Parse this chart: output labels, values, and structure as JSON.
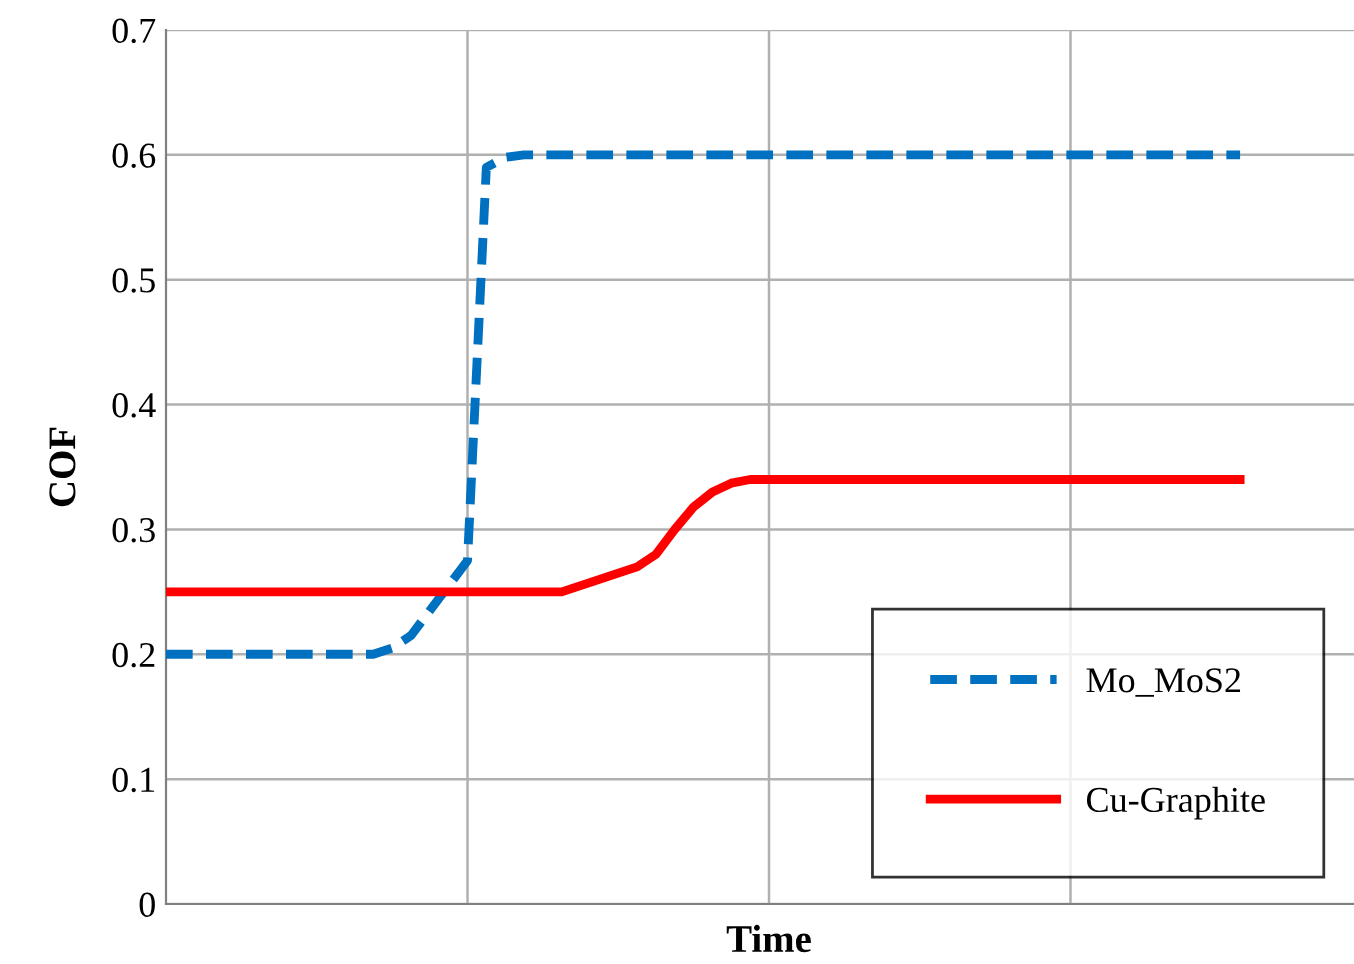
{
  "chart_data": {
    "type": "line",
    "xlabel": "Time",
    "ylabel": "COF",
    "categories": [
      null,
      null,
      null,
      null,
      null,
      null,
      null,
      null,
      null,
      null,
      null,
      null,
      null,
      null,
      null,
      null,
      null,
      null,
      null,
      null,
      null,
      null,
      null,
      null,
      null,
      null,
      null,
      null,
      null,
      null,
      null,
      null,
      null,
      null,
      null,
      null,
      null,
      null,
      null,
      null,
      null,
      null,
      null,
      null,
      null,
      null,
      null,
      null,
      null,
      null,
      null,
      null,
      null,
      null,
      null,
      null,
      null,
      null,
      null,
      null,
      null,
      null,
      null,
      null,
      null
    ],
    "ylim": [
      0,
      0.7
    ],
    "yticks": [
      0,
      0.1,
      0.2,
      0.3,
      0.4,
      0.5,
      0.6,
      0.7
    ],
    "grid": true,
    "legend": "bottom right",
    "marker": "none",
    "series": [
      {
        "name": "Mo_MoS2",
        "color": "#0070c0",
        "line_style": "dashed",
        "values": [
          0.2,
          0.2,
          0.2,
          0.2,
          0.2,
          0.2,
          0.2,
          0.2,
          0.2,
          0.2,
          0.2,
          0.2,
          0.205,
          0.215,
          0.235,
          0.255,
          0.275,
          0.59,
          0.598,
          0.6,
          0.6,
          0.6,
          0.6,
          0.6,
          0.6,
          0.6,
          0.6,
          0.6,
          0.6,
          0.6,
          0.6,
          0.6,
          0.6,
          0.6,
          0.6,
          0.6,
          0.6,
          0.6,
          0.6,
          0.6,
          0.6,
          0.6,
          0.6,
          0.6,
          0.6,
          0.6,
          0.6,
          0.6,
          0.6,
          0.6,
          0.6,
          0.6,
          0.6,
          0.6,
          0.6,
          0.6,
          0.6,
          0.6,
          null,
          null,
          null,
          null,
          null,
          null,
          null
        ]
      },
      {
        "name": "Cu-Graphite",
        "color": "#ff0000",
        "line_style": "solid",
        "values": [
          0.25,
          0.25,
          0.25,
          0.25,
          0.25,
          0.25,
          0.25,
          0.25,
          0.25,
          0.25,
          0.25,
          0.25,
          0.25,
          0.25,
          0.25,
          0.25,
          0.25,
          0.25,
          0.25,
          0.25,
          0.25,
          0.25,
          0.255,
          0.26,
          0.265,
          0.27,
          0.28,
          0.3,
          0.318,
          0.33,
          0.337,
          0.34,
          0.34,
          0.34,
          0.34,
          0.34,
          0.34,
          0.34,
          0.34,
          0.34,
          0.34,
          0.34,
          0.34,
          0.34,
          0.34,
          0.34,
          0.34,
          0.34,
          0.34,
          0.34,
          0.34,
          0.34,
          0.34,
          0.34,
          0.34,
          0.34,
          0.34,
          0.34,
          null,
          null,
          null,
          null,
          null,
          null,
          null
        ]
      }
    ]
  }
}
